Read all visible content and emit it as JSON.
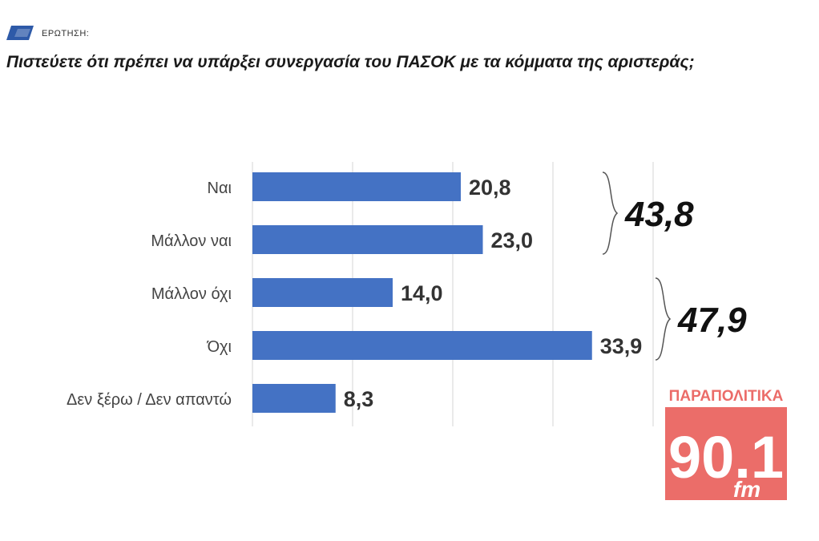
{
  "header": {
    "question_label": "ΕΡΩΤΗΣΗ:",
    "title": "Πιστεύετε ότι πρέπει να υπάρξει συνεργασία του ΠΑΣΟΚ με τα κόμματα της αριστεράς;"
  },
  "chart_data": {
    "type": "bar",
    "orientation": "horizontal",
    "categories": [
      "Ναι",
      "Μάλλον ναι",
      "Μάλλον όχι",
      "Όχι",
      "Δεν ξέρω / Δεν απαντώ"
    ],
    "values": [
      20.8,
      23.0,
      14.0,
      33.9,
      8.3
    ],
    "value_labels": [
      "20,8",
      "23,0",
      "14,0",
      "33,9",
      "8,3"
    ],
    "xlim": [
      0,
      40
    ],
    "grid": true,
    "bar_color": "#4472C4",
    "groups": [
      {
        "label": "43,8",
        "value": 43.8,
        "from": 0,
        "to": 1
      },
      {
        "label": "47,9",
        "value": 47.9,
        "from": 2,
        "to": 3
      }
    ]
  },
  "logo": {
    "top_text": "ΠΑΡΑΠΟΛΙΤΙΚΑ",
    "number": "90.1",
    "suffix": "fm",
    "color": "#e8534f"
  }
}
